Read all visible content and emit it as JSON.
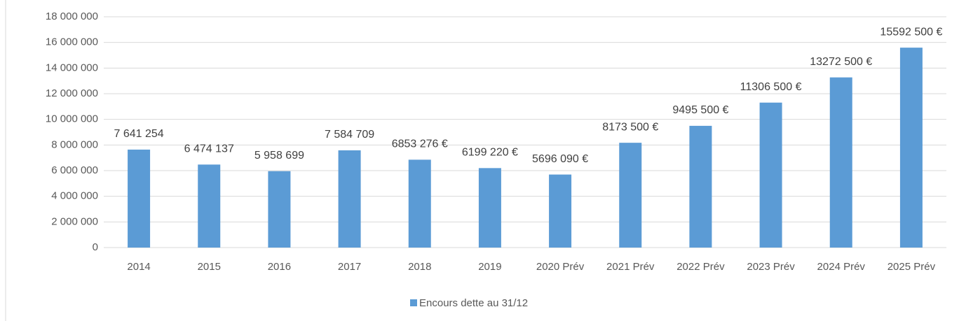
{
  "chart_data": {
    "type": "bar",
    "categories": [
      "2014",
      "2015",
      "2016",
      "2017",
      "2018",
      "2019",
      "2020 Prév",
      "2021 Prév",
      "2022 Prév",
      "2023 Prév",
      "2024 Prév",
      "2025 Prév"
    ],
    "series": [
      {
        "name": "Encours dette au 31/12",
        "color": "#5b9bd5",
        "values": [
          7641254,
          6474137,
          5958699,
          7584709,
          6853276,
          6199220,
          5696090,
          8173500,
          9495500,
          11306500,
          13272500,
          15592500
        ],
        "value_labels": [
          "7 641 254",
          "6 474 137",
          "5 958 699",
          "7 584 709",
          "6853 276 €",
          "6199 220 €",
          "5696 090 €",
          "8173 500 €",
          "9495 500 €",
          "11306 500 €",
          "13272 500 €",
          "15592 500 €"
        ]
      }
    ],
    "ylim": [
      0,
      18000000
    ],
    "yticks": [
      0,
      {
        "value": 2000000,
        "label": "2 000 000"
      },
      {
        "value": 4000000,
        "label": "4 000 000"
      },
      {
        "value": 6000000,
        "label": "6 000 000"
      },
      {
        "value": 8000000,
        "label": "8 000 000"
      },
      {
        "value": 10000000,
        "label": "10 000 000"
      },
      {
        "value": 12000000,
        "label": "12 000 000"
      },
      {
        "value": 14000000,
        "label": "14 000 000"
      },
      {
        "value": 16000000,
        "label": "16 000 000"
      },
      {
        "value": 18000000,
        "label": "18 000 000"
      }
    ],
    "grid": true,
    "legend": "bottom"
  }
}
